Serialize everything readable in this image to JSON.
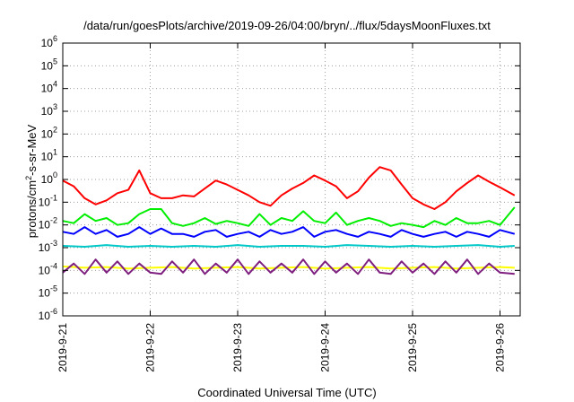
{
  "chart_data": {
    "type": "line",
    "title": "/data/run/goesPlots/archive/2019-09-26/04:00/bryn/../flux/5daysMoonFluxes.txt",
    "xlabel": "Coordinated Universal Time (UTC)",
    "ylabel_prefix": "protons/cm",
    "ylabel_sup": "2",
    "ylabel_suffix": "-s-sr-MeV",
    "yscale": "log",
    "ylim": [
      1e-06,
      1000000.0
    ],
    "y_ticks": [
      {
        "base": "10",
        "exp": "6"
      },
      {
        "base": "10",
        "exp": "5"
      },
      {
        "base": "10",
        "exp": "4"
      },
      {
        "base": "10",
        "exp": "3"
      },
      {
        "base": "10",
        "exp": "2"
      },
      {
        "base": "10",
        "exp": "1"
      },
      {
        "base": "10",
        "exp": "0"
      },
      {
        "base": "10",
        "exp": "-1"
      },
      {
        "base": "10",
        "exp": "-2"
      },
      {
        "base": "10",
        "exp": "-3"
      },
      {
        "base": "10",
        "exp": "-4"
      },
      {
        "base": "10",
        "exp": "-5"
      },
      {
        "base": "10",
        "exp": "-6"
      }
    ],
    "x_ticks": [
      "2019-9-21",
      "2019-9-22",
      "2019-9-23",
      "2019-9-24",
      "2019-9-25",
      "2019-9-26"
    ],
    "xlim": [
      "2019-09-21 00:00",
      "2019-09-26 04:00"
    ],
    "grid": true,
    "series": [
      {
        "color": "#ff0000",
        "x": [
          "2019-09-21 00:00",
          "2019-09-21 03:00",
          "2019-09-21 06:00",
          "2019-09-21 09:00",
          "2019-09-21 12:00",
          "2019-09-21 15:00",
          "2019-09-21 18:00",
          "2019-09-21 21:00",
          "2019-09-22 00:00",
          "2019-09-22 03:00",
          "2019-09-22 06:00",
          "2019-09-22 09:00",
          "2019-09-22 12:00",
          "2019-09-22 15:00",
          "2019-09-22 18:00",
          "2019-09-22 21:00",
          "2019-09-23 00:00",
          "2019-09-23 03:00",
          "2019-09-23 06:00",
          "2019-09-23 09:00",
          "2019-09-23 12:00",
          "2019-09-23 15:00",
          "2019-09-23 18:00",
          "2019-09-23 21:00",
          "2019-09-24 00:00",
          "2019-09-24 03:00",
          "2019-09-24 06:00",
          "2019-09-24 09:00",
          "2019-09-24 12:00",
          "2019-09-24 15:00",
          "2019-09-24 18:00",
          "2019-09-24 21:00",
          "2019-09-25 00:00",
          "2019-09-25 03:00",
          "2019-09-25 06:00",
          "2019-09-25 09:00",
          "2019-09-25 12:00",
          "2019-09-25 15:00",
          "2019-09-25 18:00",
          "2019-09-25 21:00",
          "2019-09-26 00:00",
          "2019-09-26 04:00"
        ],
        "y": [
          0.9,
          0.5,
          0.15,
          0.08,
          0.12,
          0.25,
          0.35,
          2.5,
          0.25,
          0.15,
          0.15,
          0.2,
          0.18,
          0.4,
          0.9,
          0.6,
          0.35,
          0.2,
          0.1,
          0.07,
          0.2,
          0.4,
          0.7,
          1.5,
          0.9,
          0.5,
          0.15,
          0.3,
          1.2,
          3.5,
          2.5,
          0.6,
          0.15,
          0.08,
          0.05,
          0.1,
          0.3,
          0.7,
          1.5,
          0.8,
          0.45,
          0.2
        ]
      },
      {
        "color": "#00ee00",
        "x": [
          "2019-09-21 00:00",
          "2019-09-21 03:00",
          "2019-09-21 06:00",
          "2019-09-21 09:00",
          "2019-09-21 12:00",
          "2019-09-21 15:00",
          "2019-09-21 18:00",
          "2019-09-21 21:00",
          "2019-09-22 00:00",
          "2019-09-22 03:00",
          "2019-09-22 06:00",
          "2019-09-22 09:00",
          "2019-09-22 12:00",
          "2019-09-22 15:00",
          "2019-09-22 18:00",
          "2019-09-22 21:00",
          "2019-09-23 00:00",
          "2019-09-23 03:00",
          "2019-09-23 06:00",
          "2019-09-23 09:00",
          "2019-09-23 12:00",
          "2019-09-23 15:00",
          "2019-09-23 18:00",
          "2019-09-23 21:00",
          "2019-09-24 00:00",
          "2019-09-24 03:00",
          "2019-09-24 06:00",
          "2019-09-24 09:00",
          "2019-09-24 12:00",
          "2019-09-24 15:00",
          "2019-09-24 18:00",
          "2019-09-24 21:00",
          "2019-09-25 00:00",
          "2019-09-25 03:00",
          "2019-09-25 06:00",
          "2019-09-25 09:00",
          "2019-09-25 12:00",
          "2019-09-25 15:00",
          "2019-09-25 18:00",
          "2019-09-25 21:00",
          "2019-09-26 00:00",
          "2019-09-26 04:00"
        ],
        "y": [
          0.015,
          0.012,
          0.03,
          0.015,
          0.02,
          0.01,
          0.012,
          0.03,
          0.05,
          0.05,
          0.012,
          0.009,
          0.012,
          0.02,
          0.011,
          0.015,
          0.012,
          0.009,
          0.03,
          0.01,
          0.02,
          0.015,
          0.04,
          0.015,
          0.012,
          0.035,
          0.01,
          0.015,
          0.02,
          0.015,
          0.009,
          0.012,
          0.01,
          0.008,
          0.015,
          0.01,
          0.02,
          0.012,
          0.012,
          0.015,
          0.01,
          0.06
        ]
      },
      {
        "color": "#0000ff",
        "x": [
          "2019-09-21 00:00",
          "2019-09-21 03:00",
          "2019-09-21 06:00",
          "2019-09-21 09:00",
          "2019-09-21 12:00",
          "2019-09-21 15:00",
          "2019-09-21 18:00",
          "2019-09-21 21:00",
          "2019-09-22 00:00",
          "2019-09-22 03:00",
          "2019-09-22 06:00",
          "2019-09-22 09:00",
          "2019-09-22 12:00",
          "2019-09-22 15:00",
          "2019-09-22 18:00",
          "2019-09-22 21:00",
          "2019-09-23 00:00",
          "2019-09-23 03:00",
          "2019-09-23 06:00",
          "2019-09-23 09:00",
          "2019-09-23 12:00",
          "2019-09-23 15:00",
          "2019-09-23 18:00",
          "2019-09-23 21:00",
          "2019-09-24 00:00",
          "2019-09-24 03:00",
          "2019-09-24 06:00",
          "2019-09-24 09:00",
          "2019-09-24 12:00",
          "2019-09-24 15:00",
          "2019-09-24 18:00",
          "2019-09-24 21:00",
          "2019-09-25 00:00",
          "2019-09-25 03:00",
          "2019-09-25 06:00",
          "2019-09-25 09:00",
          "2019-09-25 12:00",
          "2019-09-25 15:00",
          "2019-09-25 18:00",
          "2019-09-25 21:00",
          "2019-09-26 00:00",
          "2019-09-26 04:00"
        ],
        "y": [
          0.005,
          0.004,
          0.008,
          0.004,
          0.006,
          0.003,
          0.004,
          0.008,
          0.004,
          0.007,
          0.004,
          0.004,
          0.003,
          0.005,
          0.006,
          0.003,
          0.004,
          0.005,
          0.003,
          0.006,
          0.004,
          0.005,
          0.008,
          0.003,
          0.005,
          0.006,
          0.004,
          0.003,
          0.005,
          0.004,
          0.003,
          0.006,
          0.004,
          0.003,
          0.004,
          0.005,
          0.003,
          0.005,
          0.004,
          0.003,
          0.006,
          0.004
        ]
      },
      {
        "color": "#00c8c8",
        "x": [
          "2019-09-21 00:00",
          "2019-09-21 06:00",
          "2019-09-21 12:00",
          "2019-09-21 18:00",
          "2019-09-22 00:00",
          "2019-09-22 06:00",
          "2019-09-22 12:00",
          "2019-09-22 18:00",
          "2019-09-23 00:00",
          "2019-09-23 06:00",
          "2019-09-23 12:00",
          "2019-09-23 18:00",
          "2019-09-24 00:00",
          "2019-09-24 06:00",
          "2019-09-24 12:00",
          "2019-09-24 18:00",
          "2019-09-25 00:00",
          "2019-09-25 06:00",
          "2019-09-25 12:00",
          "2019-09-25 18:00",
          "2019-09-26 00:00",
          "2019-09-26 04:00"
        ],
        "y": [
          0.0012,
          0.0011,
          0.0013,
          0.0011,
          0.0012,
          0.0011,
          0.0012,
          0.0011,
          0.0013,
          0.0011,
          0.0012,
          0.0012,
          0.0011,
          0.0013,
          0.0012,
          0.0011,
          0.0012,
          0.0011,
          0.0012,
          0.0013,
          0.0011,
          0.0012
        ]
      },
      {
        "color": "#ffff00",
        "x": [
          "2019-09-21 00:00",
          "2019-09-21 06:00",
          "2019-09-21 12:00",
          "2019-09-21 18:00",
          "2019-09-22 00:00",
          "2019-09-22 06:00",
          "2019-09-22 12:00",
          "2019-09-22 18:00",
          "2019-09-23 00:00",
          "2019-09-23 06:00",
          "2019-09-23 12:00",
          "2019-09-23 18:00",
          "2019-09-24 00:00",
          "2019-09-24 06:00",
          "2019-09-24 12:00",
          "2019-09-24 18:00",
          "2019-09-25 00:00",
          "2019-09-25 06:00",
          "2019-09-25 12:00",
          "2019-09-25 18:00",
          "2019-09-26 00:00",
          "2019-09-26 04:00"
        ],
        "y": [
          0.00015,
          0.00013,
          0.00014,
          0.00012,
          0.00013,
          0.00014,
          0.00012,
          0.00013,
          0.00014,
          0.00012,
          0.00013,
          0.00014,
          0.00012,
          0.00013,
          0.00014,
          0.00012,
          0.00013,
          0.00014,
          0.00012,
          0.00013,
          0.00014,
          0.00013
        ]
      },
      {
        "color": "#7f2080",
        "x": [
          "2019-09-21 00:00",
          "2019-09-21 03:00",
          "2019-09-21 06:00",
          "2019-09-21 09:00",
          "2019-09-21 12:00",
          "2019-09-21 15:00",
          "2019-09-21 18:00",
          "2019-09-21 21:00",
          "2019-09-22 00:00",
          "2019-09-22 03:00",
          "2019-09-22 06:00",
          "2019-09-22 09:00",
          "2019-09-22 12:00",
          "2019-09-22 15:00",
          "2019-09-22 18:00",
          "2019-09-22 21:00",
          "2019-09-23 00:00",
          "2019-09-23 03:00",
          "2019-09-23 06:00",
          "2019-09-23 09:00",
          "2019-09-23 12:00",
          "2019-09-23 15:00",
          "2019-09-23 18:00",
          "2019-09-23 21:00",
          "2019-09-24 00:00",
          "2019-09-24 03:00",
          "2019-09-24 06:00",
          "2019-09-24 09:00",
          "2019-09-24 12:00",
          "2019-09-24 15:00",
          "2019-09-24 18:00",
          "2019-09-24 21:00",
          "2019-09-25 00:00",
          "2019-09-25 03:00",
          "2019-09-25 06:00",
          "2019-09-25 09:00",
          "2019-09-25 12:00",
          "2019-09-25 15:00",
          "2019-09-25 18:00",
          "2019-09-25 21:00",
          "2019-09-26 00:00",
          "2019-09-26 04:00"
        ],
        "y": [
          8e-05,
          0.0002,
          7e-05,
          0.0003,
          8e-05,
          0.00025,
          7e-05,
          0.0002,
          8e-05,
          7e-05,
          0.00025,
          8e-05,
          0.0003,
          7e-05,
          0.0002,
          8e-05,
          0.0003,
          7e-05,
          0.00025,
          8e-05,
          0.0002,
          8e-05,
          0.0003,
          7e-05,
          0.00025,
          8e-05,
          0.0002,
          7e-05,
          0.0003,
          8e-05,
          7e-05,
          0.00025,
          8e-05,
          0.0002,
          7e-05,
          0.00025,
          8e-05,
          0.0003,
          7e-05,
          0.0002,
          8e-05,
          7e-05
        ]
      }
    ]
  }
}
